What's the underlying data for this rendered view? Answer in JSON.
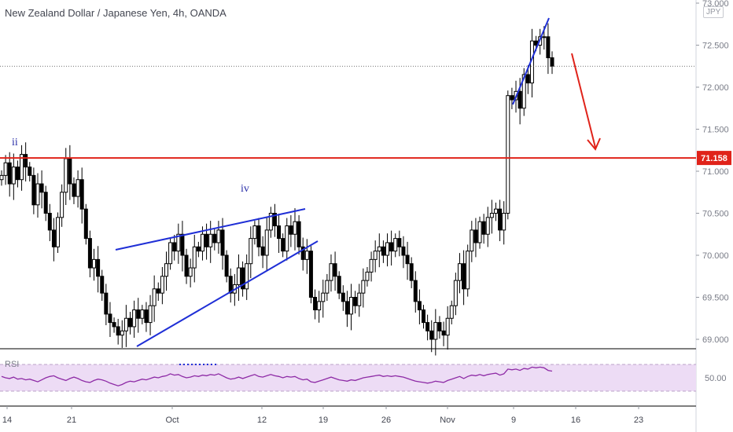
{
  "header": {
    "title": "New Zealand Dollar / Japanese Yen, 4h, OANDA",
    "currency": "JPY"
  },
  "colors": {
    "candle": "#000000",
    "level_line": "#e0231a",
    "trend_lines": "#1f2fd6",
    "wave_labels": "#2a2fa8",
    "rsi_line": "#8e2ba6",
    "rsi_band": "#eddcf5",
    "price_tag": "#e0231a"
  },
  "chart_data": {
    "type": "candlestick",
    "symbol": "NZDJPY",
    "interval": "4h",
    "price_axis": {
      "ylim": [
        68.9,
        73.0
      ],
      "ticks": [
        "73.000",
        "72.500",
        "72.000",
        "71.500",
        "71.000",
        "70.500",
        "70.000",
        "69.500",
        "69.000"
      ]
    },
    "time_axis": {
      "ticks": [
        "14",
        "21",
        "Oct",
        "12",
        "19",
        "26",
        "Nov",
        "9",
        "16",
        "23"
      ]
    },
    "horizontal_level": {
      "value": 71.158,
      "label": "71.158"
    },
    "last_price_dotted_line": 72.25,
    "wave_labels": [
      "ii",
      "iv"
    ],
    "series": [
      {
        "name": "price",
        "close": [
          70.95,
          71.1,
          70.85,
          71.05,
          70.9,
          71.2,
          71.05,
          70.95,
          70.6,
          70.85,
          70.75,
          70.5,
          70.3,
          70.1,
          70.45,
          70.75,
          71.15,
          70.85,
          70.7,
          70.9,
          70.55,
          70.2,
          69.85,
          69.95,
          69.75,
          69.55,
          69.3,
          69.2,
          69.15,
          69.05,
          69.1,
          69.25,
          69.15,
          69.35,
          69.25,
          69.35,
          69.2,
          69.4,
          69.6,
          69.55,
          69.75,
          69.9,
          70.15,
          70.05,
          70.25,
          70.0,
          69.75,
          69.85,
          70.1,
          70.05,
          70.25,
          70.1,
          70.25,
          70.15,
          70.3,
          70.0,
          69.75,
          69.55,
          69.65,
          69.85,
          69.6,
          69.9,
          70.2,
          70.35,
          70.1,
          70.0,
          70.3,
          70.5,
          70.35,
          70.2,
          70.05,
          70.35,
          70.25,
          70.4,
          70.1,
          69.95,
          70.05,
          69.5,
          69.35,
          69.45,
          69.55,
          69.7,
          69.9,
          69.75,
          69.55,
          69.45,
          69.3,
          69.5,
          69.4,
          69.55,
          69.7,
          69.8,
          69.95,
          70.05,
          70.1,
          70.0,
          70.15,
          70.05,
          70.2,
          70.1,
          70.0,
          69.9,
          69.7,
          69.45,
          69.35,
          69.2,
          69.1,
          69.0,
          69.2,
          69.1,
          69.05,
          69.25,
          69.4,
          69.7,
          69.9,
          69.6,
          70.05,
          70.3,
          70.15,
          70.4,
          70.25,
          70.45,
          70.5,
          70.55,
          70.3,
          70.5,
          71.9,
          71.85,
          71.95,
          71.75,
          72.15,
          72.05,
          72.55,
          72.5,
          72.6,
          72.6,
          72.35,
          72.25
        ]
      },
      {
        "name": "RSI",
        "values": [
          52,
          50,
          49,
          51,
          48,
          49,
          47,
          48,
          46,
          44,
          47,
          50,
          52,
          53,
          50,
          48,
          46,
          49,
          51,
          49,
          46,
          44,
          43,
          46,
          48,
          47,
          45,
          42,
          40,
          38,
          40,
          43,
          45,
          44,
          46,
          48,
          47,
          49,
          51,
          50,
          52,
          53,
          56,
          54,
          55,
          52,
          50,
          51,
          53,
          52,
          54,
          53,
          55,
          54,
          56,
          53,
          50,
          48,
          49,
          51,
          49,
          51,
          53,
          55,
          52,
          51,
          53,
          55,
          53,
          52,
          50,
          52,
          51,
          52,
          49,
          47,
          48,
          44,
          43,
          45,
          47,
          49,
          51,
          49,
          47,
          46,
          45,
          47,
          46,
          48,
          50,
          51,
          52,
          53,
          54,
          52,
          53,
          52,
          53,
          52,
          51,
          49,
          47,
          45,
          44,
          43,
          42,
          43,
          45,
          44,
          43,
          46,
          48,
          50,
          52,
          49,
          52,
          54,
          53,
          55,
          53,
          55,
          56,
          57,
          54,
          56,
          63,
          62,
          63,
          61,
          64,
          63,
          66,
          65,
          66,
          65,
          61,
          60
        ]
      }
    ],
    "rsi_axis": {
      "tick": "50.00",
      "band": [
        30,
        70
      ]
    }
  }
}
